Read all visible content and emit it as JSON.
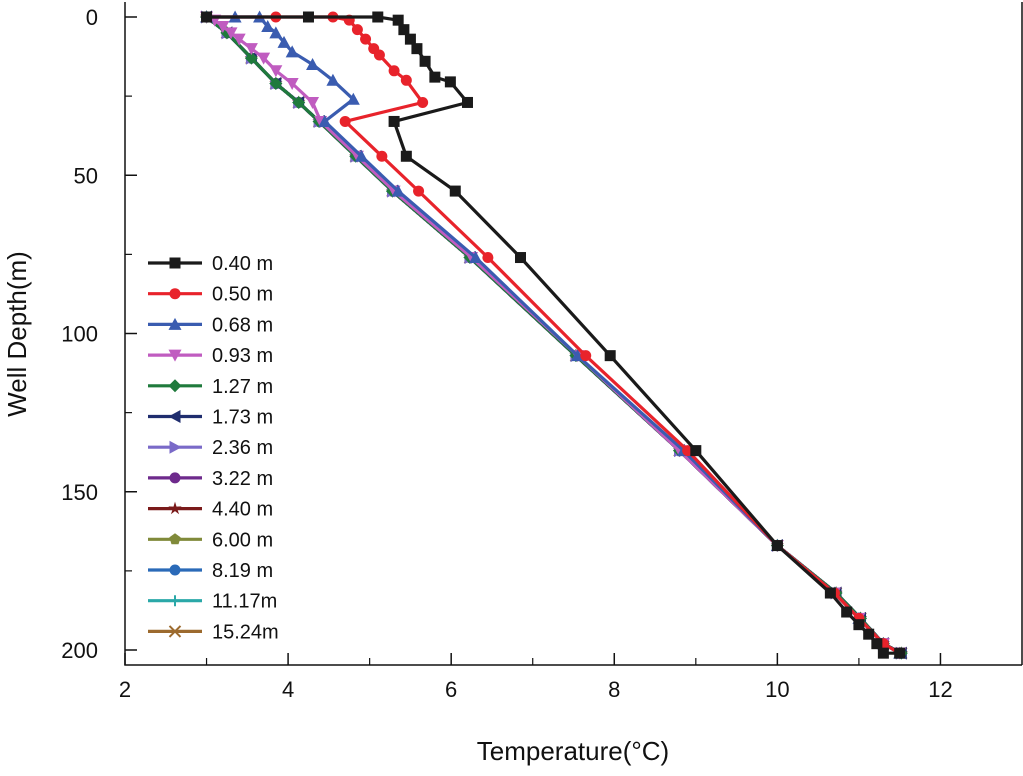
{
  "chart_data": {
    "type": "line",
    "title": "",
    "xlabel": "Temperature(°C)",
    "ylabel": "Well Depth(m)",
    "xlim": [
      2,
      13
    ],
    "ylim": [
      0,
      205
    ],
    "y_inverted": true,
    "x_ticks": [
      2,
      4,
      6,
      8,
      10,
      12
    ],
    "y_ticks": [
      0,
      50,
      100,
      150,
      200
    ],
    "x_tick_labels": [
      "2",
      "4",
      "6",
      "8",
      "10",
      "12"
    ],
    "y_tick_labels": [
      "0",
      "50",
      "100",
      "150",
      "200"
    ],
    "grid": false,
    "legend_position": "left-center",
    "series": [
      {
        "name": "0.40 m",
        "color": "#1a1a1a",
        "marker": "square",
        "points": [
          [
            3.0,
            0
          ],
          [
            4.25,
            0
          ],
          [
            5.1,
            0
          ],
          [
            5.35,
            1
          ],
          [
            5.42,
            4
          ],
          [
            5.5,
            7
          ],
          [
            5.58,
            10
          ],
          [
            5.68,
            14
          ],
          [
            5.8,
            19
          ],
          [
            5.99,
            20.5
          ],
          [
            6.2,
            27
          ],
          [
            5.3,
            33
          ],
          [
            5.45,
            44
          ],
          [
            6.05,
            55
          ],
          [
            6.85,
            76
          ],
          [
            7.95,
            107
          ],
          [
            9.0,
            137
          ],
          [
            10.0,
            167
          ],
          [
            10.65,
            182
          ],
          [
            10.85,
            188
          ],
          [
            11.0,
            192
          ],
          [
            11.12,
            195
          ],
          [
            11.22,
            198
          ],
          [
            11.3,
            201
          ],
          [
            11.5,
            201
          ]
        ]
      },
      {
        "name": "0.50 m",
        "color": "#e8232b",
        "marker": "circle",
        "points": [
          [
            3.0,
            0
          ],
          [
            3.85,
            0
          ],
          [
            4.55,
            0
          ],
          [
            4.75,
            1
          ],
          [
            4.85,
            4
          ],
          [
            4.95,
            7
          ],
          [
            5.05,
            10
          ],
          [
            5.12,
            12
          ],
          [
            5.3,
            17
          ],
          [
            5.45,
            20
          ],
          [
            5.65,
            27
          ],
          [
            4.7,
            33
          ],
          [
            5.15,
            44
          ],
          [
            5.6,
            55
          ],
          [
            6.45,
            76
          ],
          [
            7.65,
            107
          ],
          [
            8.9,
            137
          ],
          [
            10.0,
            167
          ],
          [
            10.7,
            182
          ],
          [
            11.0,
            190
          ],
          [
            11.3,
            198
          ],
          [
            11.5,
            201
          ]
        ]
      },
      {
        "name": "0.68 m",
        "color": "#3a5cb0",
        "marker": "triangle-up",
        "points": [
          [
            3.0,
            0
          ],
          [
            3.35,
            0
          ],
          [
            3.65,
            0
          ],
          [
            3.75,
            3
          ],
          [
            3.85,
            5
          ],
          [
            3.95,
            8
          ],
          [
            4.05,
            11
          ],
          [
            4.3,
            15
          ],
          [
            4.55,
            20
          ],
          [
            4.8,
            26
          ],
          [
            4.45,
            33
          ],
          [
            4.9,
            44
          ],
          [
            5.35,
            55
          ],
          [
            6.3,
            76
          ],
          [
            7.55,
            107
          ],
          [
            8.85,
            137
          ],
          [
            10.0,
            167
          ],
          [
            10.7,
            182
          ],
          [
            11.0,
            190
          ],
          [
            11.3,
            198
          ],
          [
            11.5,
            201
          ]
        ]
      },
      {
        "name": "0.93 m",
        "color": "#c05cc0",
        "marker": "triangle-down",
        "points": [
          [
            3.0,
            0
          ],
          [
            3.1,
            1
          ],
          [
            3.2,
            3
          ],
          [
            3.3,
            5
          ],
          [
            3.4,
            7
          ],
          [
            3.55,
            10
          ],
          [
            3.7,
            13
          ],
          [
            3.85,
            17
          ],
          [
            4.05,
            21
          ],
          [
            4.3,
            27
          ],
          [
            4.4,
            33
          ],
          [
            4.85,
            44
          ],
          [
            5.3,
            55
          ],
          [
            6.25,
            76
          ],
          [
            7.55,
            107
          ],
          [
            8.8,
            137
          ],
          [
            10.0,
            167
          ],
          [
            10.7,
            182
          ],
          [
            11.0,
            190
          ],
          [
            11.3,
            198
          ],
          [
            11.5,
            201
          ]
        ]
      },
      {
        "name": "1.27 m",
        "color": "#1f7a3c",
        "marker": "diamond",
        "points": [
          [
            3.0,
            0
          ],
          [
            3.25,
            5
          ],
          [
            3.55,
            13
          ],
          [
            3.85,
            21
          ],
          [
            4.13,
            27
          ],
          [
            4.38,
            33
          ],
          [
            4.83,
            44
          ],
          [
            5.28,
            55
          ],
          [
            6.23,
            76
          ],
          [
            7.53,
            107
          ],
          [
            8.8,
            137
          ],
          [
            10.0,
            167
          ],
          [
            10.72,
            182
          ],
          [
            11.02,
            190
          ],
          [
            11.3,
            198
          ],
          [
            11.52,
            201
          ]
        ]
      },
      {
        "name": "1.73 m",
        "color": "#1f2d6e",
        "marker": "triangle-left",
        "points": [
          [
            3.0,
            0
          ],
          [
            3.25,
            5
          ],
          [
            3.55,
            13
          ],
          [
            3.85,
            21
          ],
          [
            4.13,
            27
          ],
          [
            4.38,
            33
          ],
          [
            4.83,
            44
          ],
          [
            5.28,
            55
          ],
          [
            6.23,
            76
          ],
          [
            7.53,
            107
          ],
          [
            8.8,
            137
          ],
          [
            10.0,
            167
          ],
          [
            10.72,
            182
          ],
          [
            11.02,
            190
          ],
          [
            11.3,
            198
          ],
          [
            11.52,
            201
          ]
        ]
      },
      {
        "name": "2.36 m",
        "color": "#7a6ac8",
        "marker": "triangle-right",
        "points": [
          [
            3.0,
            0
          ],
          [
            3.25,
            5
          ],
          [
            3.55,
            13
          ],
          [
            3.85,
            21
          ],
          [
            4.13,
            27
          ],
          [
            4.38,
            33
          ],
          [
            4.83,
            44
          ],
          [
            5.28,
            55
          ],
          [
            6.23,
            76
          ],
          [
            7.53,
            107
          ],
          [
            8.8,
            137
          ],
          [
            10.0,
            167
          ],
          [
            10.72,
            182
          ],
          [
            11.02,
            190
          ],
          [
            11.3,
            198
          ],
          [
            11.52,
            201
          ]
        ]
      },
      {
        "name": "3.22 m",
        "color": "#6e2a8c",
        "marker": "circle",
        "points": [
          [
            3.0,
            0
          ],
          [
            3.25,
            5
          ],
          [
            3.55,
            13
          ],
          [
            3.85,
            21
          ],
          [
            4.13,
            27
          ],
          [
            4.38,
            33
          ],
          [
            4.83,
            44
          ],
          [
            5.28,
            55
          ],
          [
            6.23,
            76
          ],
          [
            7.53,
            107
          ],
          [
            8.8,
            137
          ],
          [
            10.0,
            167
          ],
          [
            10.72,
            182
          ],
          [
            11.02,
            190
          ],
          [
            11.3,
            198
          ],
          [
            11.52,
            201
          ]
        ]
      },
      {
        "name": "4.40 m",
        "color": "#7a1a1a",
        "marker": "star",
        "points": [
          [
            3.0,
            0
          ],
          [
            3.25,
            5
          ],
          [
            3.55,
            13
          ],
          [
            3.85,
            21
          ],
          [
            4.13,
            27
          ],
          [
            4.38,
            33
          ],
          [
            4.83,
            44
          ],
          [
            5.28,
            55
          ],
          [
            6.23,
            76
          ],
          [
            7.53,
            107
          ],
          [
            8.8,
            137
          ],
          [
            10.0,
            167
          ],
          [
            10.72,
            182
          ],
          [
            11.02,
            190
          ],
          [
            11.3,
            198
          ],
          [
            11.52,
            201
          ]
        ]
      },
      {
        "name": "6.00 m",
        "color": "#808a3a",
        "marker": "pentagon",
        "points": [
          [
            3.0,
            0
          ],
          [
            3.25,
            5
          ],
          [
            3.55,
            13
          ],
          [
            3.85,
            21
          ],
          [
            4.13,
            27
          ],
          [
            4.38,
            33
          ],
          [
            4.83,
            44
          ],
          [
            5.28,
            55
          ],
          [
            6.23,
            76
          ],
          [
            7.53,
            107
          ],
          [
            8.8,
            137
          ],
          [
            10.0,
            167
          ],
          [
            10.72,
            182
          ],
          [
            11.02,
            190
          ],
          [
            11.3,
            198
          ],
          [
            11.52,
            201
          ]
        ]
      },
      {
        "name": "8.19 m",
        "color": "#2a6ab8",
        "marker": "circle",
        "points": [
          [
            3.0,
            0
          ],
          [
            3.25,
            5
          ],
          [
            3.55,
            13
          ],
          [
            3.85,
            21
          ],
          [
            4.13,
            27
          ],
          [
            4.38,
            33
          ],
          [
            4.83,
            44
          ],
          [
            5.28,
            55
          ],
          [
            6.23,
            76
          ],
          [
            7.53,
            107
          ],
          [
            8.8,
            137
          ],
          [
            10.0,
            167
          ],
          [
            10.72,
            182
          ],
          [
            11.02,
            190
          ],
          [
            11.3,
            198
          ],
          [
            11.52,
            201
          ]
        ]
      },
      {
        "name": "11.17m",
        "color": "#2aa8a8",
        "marker": "plus",
        "points": [
          [
            3.0,
            0
          ],
          [
            3.25,
            5
          ],
          [
            3.55,
            13
          ],
          [
            3.85,
            21
          ],
          [
            4.13,
            27
          ],
          [
            4.38,
            33
          ],
          [
            4.83,
            44
          ],
          [
            5.28,
            55
          ],
          [
            6.23,
            76
          ],
          [
            7.53,
            107
          ],
          [
            8.8,
            137
          ],
          [
            10.0,
            167
          ],
          [
            10.72,
            182
          ],
          [
            11.02,
            190
          ],
          [
            11.3,
            198
          ],
          [
            11.52,
            201
          ]
        ]
      },
      {
        "name": "15.24m",
        "color": "#9c6a2e",
        "marker": "x",
        "points": [
          [
            3.0,
            0
          ],
          [
            3.25,
            5
          ],
          [
            3.55,
            13
          ],
          [
            3.85,
            21
          ],
          [
            4.13,
            27
          ],
          [
            4.38,
            33
          ],
          [
            4.83,
            44
          ],
          [
            5.28,
            55
          ],
          [
            6.23,
            76
          ],
          [
            7.53,
            107
          ],
          [
            8.8,
            137
          ],
          [
            10.0,
            167
          ],
          [
            10.72,
            182
          ],
          [
            11.02,
            190
          ],
          [
            11.3,
            198
          ],
          [
            11.52,
            201
          ]
        ]
      }
    ]
  }
}
